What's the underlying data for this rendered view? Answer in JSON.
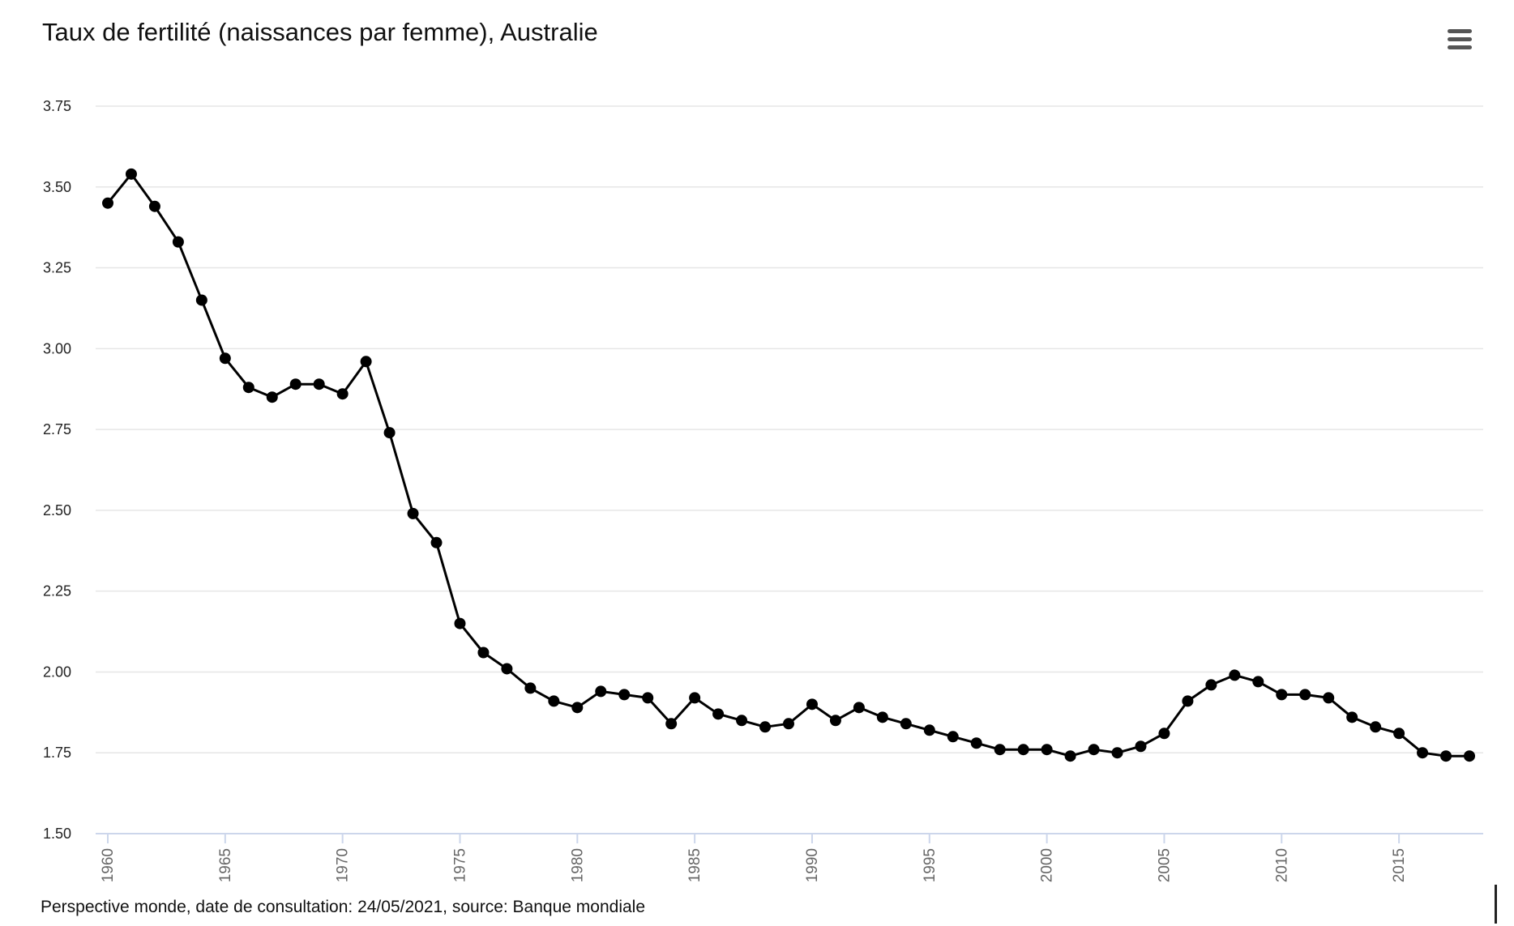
{
  "chart_data": {
    "type": "line",
    "title": "Taux de fertilité (naissances par femme), Australie",
    "xlabel": "",
    "ylabel": "",
    "xlim": [
      1960,
      2018
    ],
    "ylim": [
      1.5,
      3.75
    ],
    "yticks": [
      "1.50",
      "1.75",
      "2.00",
      "2.25",
      "2.50",
      "2.75",
      "3.00",
      "3.25",
      "3.50",
      "3.75"
    ],
    "xticks": [
      "1960",
      "1965",
      "1970",
      "1975",
      "1980",
      "1985",
      "1990",
      "1995",
      "2000",
      "2005",
      "2010",
      "2015"
    ],
    "grid": true,
    "legend": "none",
    "line_color": "#000000",
    "grid_color": "#e6e6e6",
    "axis_color": "#ccd6eb",
    "series": [
      {
        "x": [
          1960,
          1961,
          1962,
          1963,
          1964,
          1965,
          1966,
          1967,
          1968,
          1969,
          1970,
          1971,
          1972,
          1973,
          1974,
          1975,
          1976,
          1977,
          1978,
          1979,
          1980,
          1981,
          1982,
          1983,
          1984,
          1985,
          1986,
          1987,
          1988,
          1989,
          1990,
          1991,
          1992,
          1993,
          1994,
          1995,
          1996,
          1997,
          1998,
          1999,
          2000,
          2001,
          2002,
          2003,
          2004,
          2005,
          2006,
          2007,
          2008,
          2009,
          2010,
          2011,
          2012,
          2013,
          2014,
          2015,
          2016,
          2017,
          2018
        ],
        "values": [
          3.45,
          3.54,
          3.44,
          3.33,
          3.15,
          2.97,
          2.88,
          2.85,
          2.89,
          2.89,
          2.86,
          2.96,
          2.74,
          2.49,
          2.4,
          2.15,
          2.06,
          2.01,
          1.95,
          1.91,
          1.89,
          1.94,
          1.93,
          1.92,
          1.84,
          1.92,
          1.87,
          1.85,
          1.83,
          1.84,
          1.9,
          1.85,
          1.89,
          1.86,
          1.84,
          1.82,
          1.8,
          1.78,
          1.76,
          1.76,
          1.76,
          1.74,
          1.76,
          1.75,
          1.77,
          1.81,
          1.91,
          1.96,
          1.99,
          1.97,
          1.93,
          1.93,
          1.92,
          1.86,
          1.83,
          1.81,
          1.75,
          1.74,
          1.74
        ]
      }
    ]
  },
  "menu": {
    "icon": "hamburger-menu-icon"
  },
  "footer": {
    "text": "Perspective monde, date de consultation: 24/05/2021, source: Banque mondiale"
  }
}
